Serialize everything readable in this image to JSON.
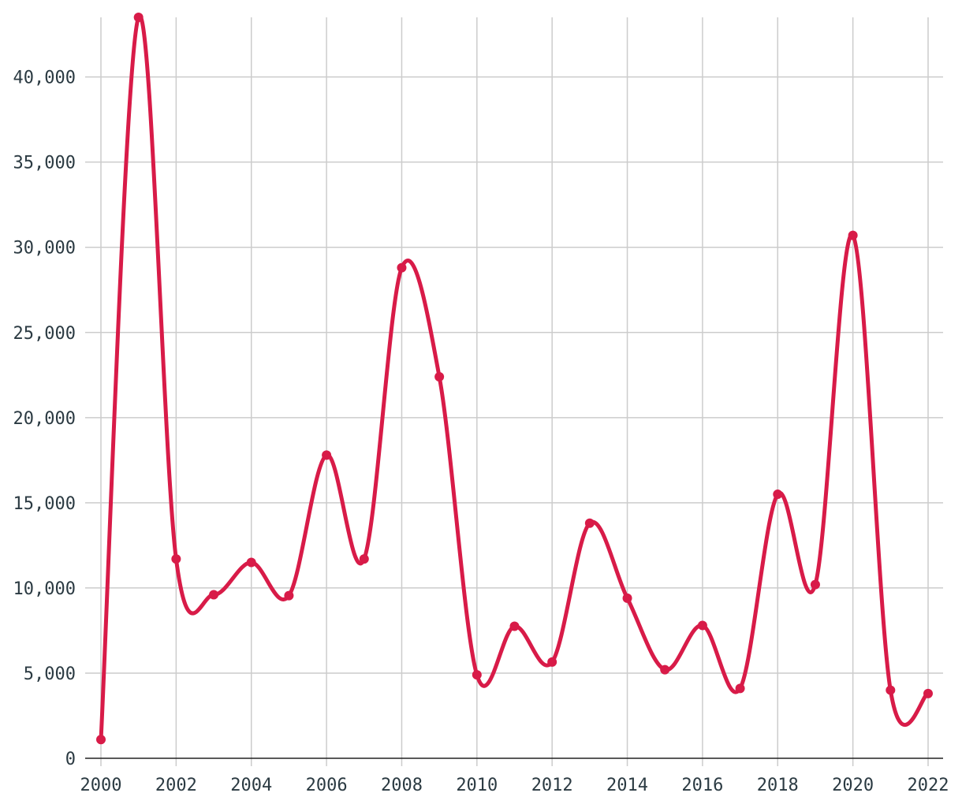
{
  "chart_data": {
    "type": "line",
    "title": "",
    "xlabel": "",
    "ylabel": "",
    "x": [
      2000,
      2001,
      2002,
      2003,
      2004,
      2005,
      2006,
      2007,
      2008,
      2009,
      2010,
      2011,
      2012,
      2013,
      2014,
      2015,
      2016,
      2017,
      2018,
      2019,
      2020,
      2021,
      2022
    ],
    "series": [
      {
        "color": "#d81b48",
        "values": [
          1100,
          43500,
          11700,
          9600,
          11500,
          9550,
          17800,
          11700,
          28800,
          22400,
          4900,
          7750,
          5650,
          13800,
          9400,
          5200,
          7800,
          4100,
          15500,
          10200,
          30700,
          4000,
          3800
        ]
      }
    ],
    "xlim": [
      2000,
      2022
    ],
    "ylim": [
      0,
      43500
    ],
    "x_ticks": [
      "2000",
      "2002",
      "2004",
      "2006",
      "2008",
      "2010",
      "2012",
      "2014",
      "2016",
      "2018",
      "2020",
      "2022"
    ],
    "y_ticks": [
      "0",
      "5,000",
      "10,000",
      "15,000",
      "20,000",
      "25,000",
      "30,000",
      "35,000",
      "40,000"
    ],
    "grid": true,
    "curve": "smooth"
  }
}
